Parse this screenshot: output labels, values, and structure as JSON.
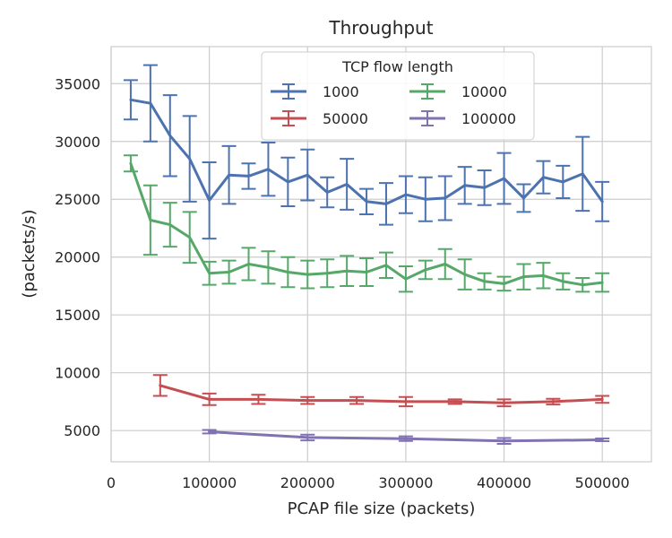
{
  "chart_data": {
    "type": "line",
    "title": "Throughput",
    "xlabel": "PCAP file size (packets)",
    "ylabel": "(packets/s)",
    "xlim": [
      0,
      550000
    ],
    "ylim": [
      2300,
      38200
    ],
    "xticks": [
      0,
      100000,
      200000,
      300000,
      400000,
      500000
    ],
    "yticks": [
      5000,
      10000,
      15000,
      20000,
      25000,
      30000,
      35000
    ],
    "grid": true,
    "error_bars": true,
    "legend": {
      "title": "TCP flow length",
      "placement": "top-center",
      "columns": 2
    },
    "series": [
      {
        "name": "1000",
        "color": "#4c72b0",
        "x": [
          20000,
          40000,
          60000,
          80000,
          100000,
          120000,
          140000,
          160000,
          180000,
          200000,
          220000,
          240000,
          260000,
          280000,
          300000,
          320000,
          340000,
          360000,
          380000,
          400000,
          420000,
          440000,
          460000,
          480000,
          500000
        ],
        "y": [
          33600,
          33300,
          30500,
          28500,
          24900,
          27100,
          27000,
          27600,
          26500,
          27100,
          25600,
          26300,
          24800,
          24600,
          25400,
          25000,
          25100,
          26200,
          26000,
          26800,
          25100,
          26900,
          26500,
          27200,
          24800
        ],
        "err": [
          1700,
          3300,
          3500,
          3700,
          3300,
          2500,
          1100,
          2300,
          2100,
          2200,
          1300,
          2200,
          1100,
          1800,
          1600,
          1900,
          1900,
          1600,
          1500,
          2200,
          1200,
          1400,
          1400,
          3200,
          1700
        ]
      },
      {
        "name": "10000",
        "color": "#55a868",
        "x": [
          20000,
          40000,
          60000,
          80000,
          100000,
          120000,
          140000,
          160000,
          180000,
          200000,
          220000,
          240000,
          260000,
          280000,
          300000,
          320000,
          340000,
          360000,
          380000,
          400000,
          420000,
          440000,
          460000,
          480000,
          500000
        ],
        "y": [
          28100,
          23200,
          22800,
          21700,
          18600,
          18700,
          19400,
          19100,
          18700,
          18500,
          18600,
          18800,
          18700,
          19300,
          18100,
          18900,
          19400,
          18500,
          17900,
          17700,
          18300,
          18400,
          17900,
          17600,
          17800
        ],
        "err": [
          700,
          3000,
          1900,
          2200,
          1000,
          1000,
          1400,
          1400,
          1300,
          1200,
          1200,
          1300,
          1200,
          1100,
          1100,
          800,
          1300,
          1300,
          700,
          600,
          1100,
          1100,
          700,
          600,
          800
        ]
      },
      {
        "name": "50000",
        "color": "#c44e52",
        "x": [
          50000,
          100000,
          150000,
          200000,
          250000,
          300000,
          350000,
          400000,
          450000,
          500000
        ],
        "y": [
          8900,
          7700,
          7700,
          7600,
          7600,
          7500,
          7500,
          7400,
          7500,
          7700
        ],
        "err": [
          900,
          500,
          400,
          300,
          300,
          400,
          200,
          300,
          250,
          300
        ]
      },
      {
        "name": "100000",
        "color": "#8172b2",
        "x": [
          100000,
          200000,
          300000,
          400000,
          500000
        ],
        "y": [
          4900,
          4400,
          4300,
          4100,
          4200
        ],
        "err": [
          150,
          250,
          200,
          250,
          120
        ]
      }
    ]
  }
}
